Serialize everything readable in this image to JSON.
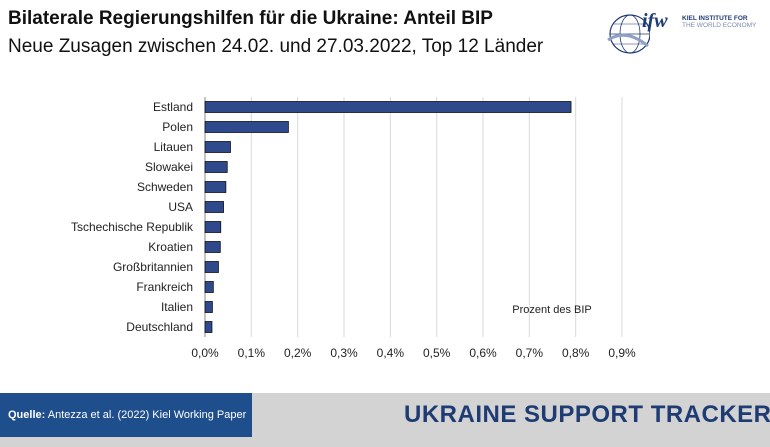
{
  "header": {
    "title": "Bilaterale Regierungshilfen für die Ukraine: Anteil BIP",
    "subtitle": "Neue Zusagen zwischen 24.02. und 27.03.2022, Top 12 Länder"
  },
  "logo": {
    "wordmark": "ifw",
    "line1": "KIEL INSTITUTE FOR",
    "line2": "THE WORLD ECONOMY"
  },
  "chart_data": {
    "type": "bar",
    "orientation": "horizontal",
    "categories": [
      "Estland",
      "Polen",
      "Litauen",
      "Slowakei",
      "Schweden",
      "USA",
      "Tschechische Republik",
      "Kroatien",
      "Großbritannien",
      "Frankreich",
      "Italien",
      "Deutschland"
    ],
    "values": [
      0.79,
      0.18,
      0.055,
      0.048,
      0.045,
      0.04,
      0.034,
      0.033,
      0.029,
      0.018,
      0.016,
      0.015
    ],
    "xlim": [
      0,
      0.9
    ],
    "xticks": [
      "0,0%",
      "0,1%",
      "0,2%",
      "0,3%",
      "0,4%",
      "0,5%",
      "0,6%",
      "0,7%",
      "0,8%",
      "0,9%"
    ],
    "annotation": "Prozent des BIP",
    "grid": true,
    "bar_color": "#2e4a8c"
  },
  "footer": {
    "source_label": "Quelle:",
    "source_text": " Antezza et al. (2022) Kiel Working Paper",
    "tracker": "UKRAINE SUPPORT TRACKER"
  }
}
